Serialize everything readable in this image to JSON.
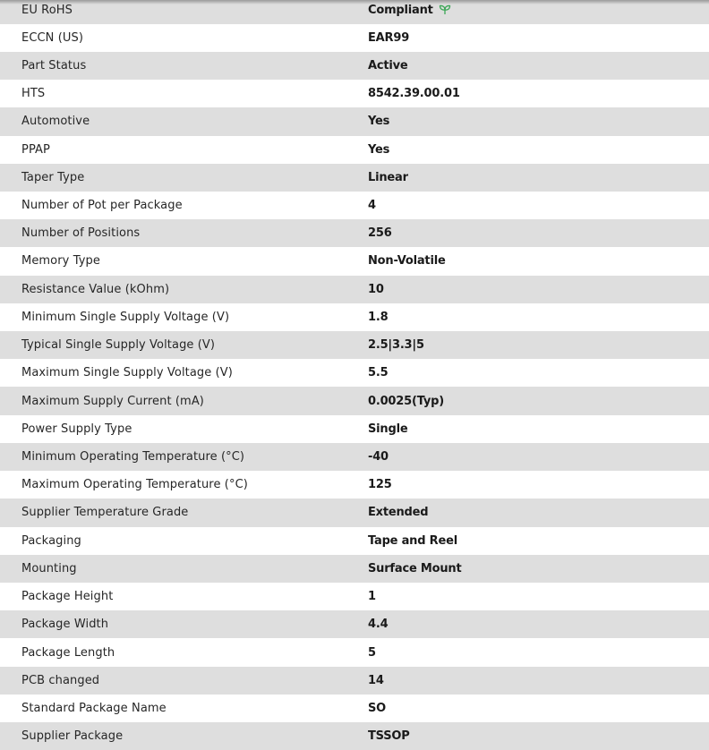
{
  "accent_color": "#3aa655",
  "rows": [
    {
      "label": "EU RoHS",
      "value": "Compliant",
      "icon": "leaf-icon"
    },
    {
      "label": "ECCN (US)",
      "value": "EAR99"
    },
    {
      "label": "Part Status",
      "value": "Active"
    },
    {
      "label": "HTS",
      "value": "8542.39.00.01"
    },
    {
      "label": "Automotive",
      "value": "Yes"
    },
    {
      "label": "PPAP",
      "value": "Yes"
    },
    {
      "label": "Taper Type",
      "value": "Linear"
    },
    {
      "label": "Number of Pot per Package",
      "value": "4"
    },
    {
      "label": "Number of Positions",
      "value": "256"
    },
    {
      "label": "Memory Type",
      "value": "Non-Volatile"
    },
    {
      "label": "Resistance Value (kOhm)",
      "value": "10"
    },
    {
      "label": "Minimum Single Supply Voltage (V)",
      "value": "1.8"
    },
    {
      "label": "Typical Single Supply Voltage (V)",
      "value": "2.5|3.3|5"
    },
    {
      "label": "Maximum Single Supply Voltage (V)",
      "value": "5.5"
    },
    {
      "label": "Maximum Supply Current (mA)",
      "value": "0.0025(Typ)"
    },
    {
      "label": "Power Supply Type",
      "value": "Single"
    },
    {
      "label": "Minimum Operating Temperature (°C)",
      "value": "-40"
    },
    {
      "label": "Maximum Operating Temperature (°C)",
      "value": "125"
    },
    {
      "label": "Supplier Temperature Grade",
      "value": "Extended"
    },
    {
      "label": "Packaging",
      "value": "Tape and Reel"
    },
    {
      "label": "Mounting",
      "value": "Surface Mount"
    },
    {
      "label": "Package Height",
      "value": "1"
    },
    {
      "label": "Package Width",
      "value": "4.4"
    },
    {
      "label": "Package Length",
      "value": "5"
    },
    {
      "label": "PCB changed",
      "value": "14"
    },
    {
      "label": "Standard Package Name",
      "value": "SO"
    },
    {
      "label": "Supplier Package",
      "value": "TSSOP"
    }
  ]
}
